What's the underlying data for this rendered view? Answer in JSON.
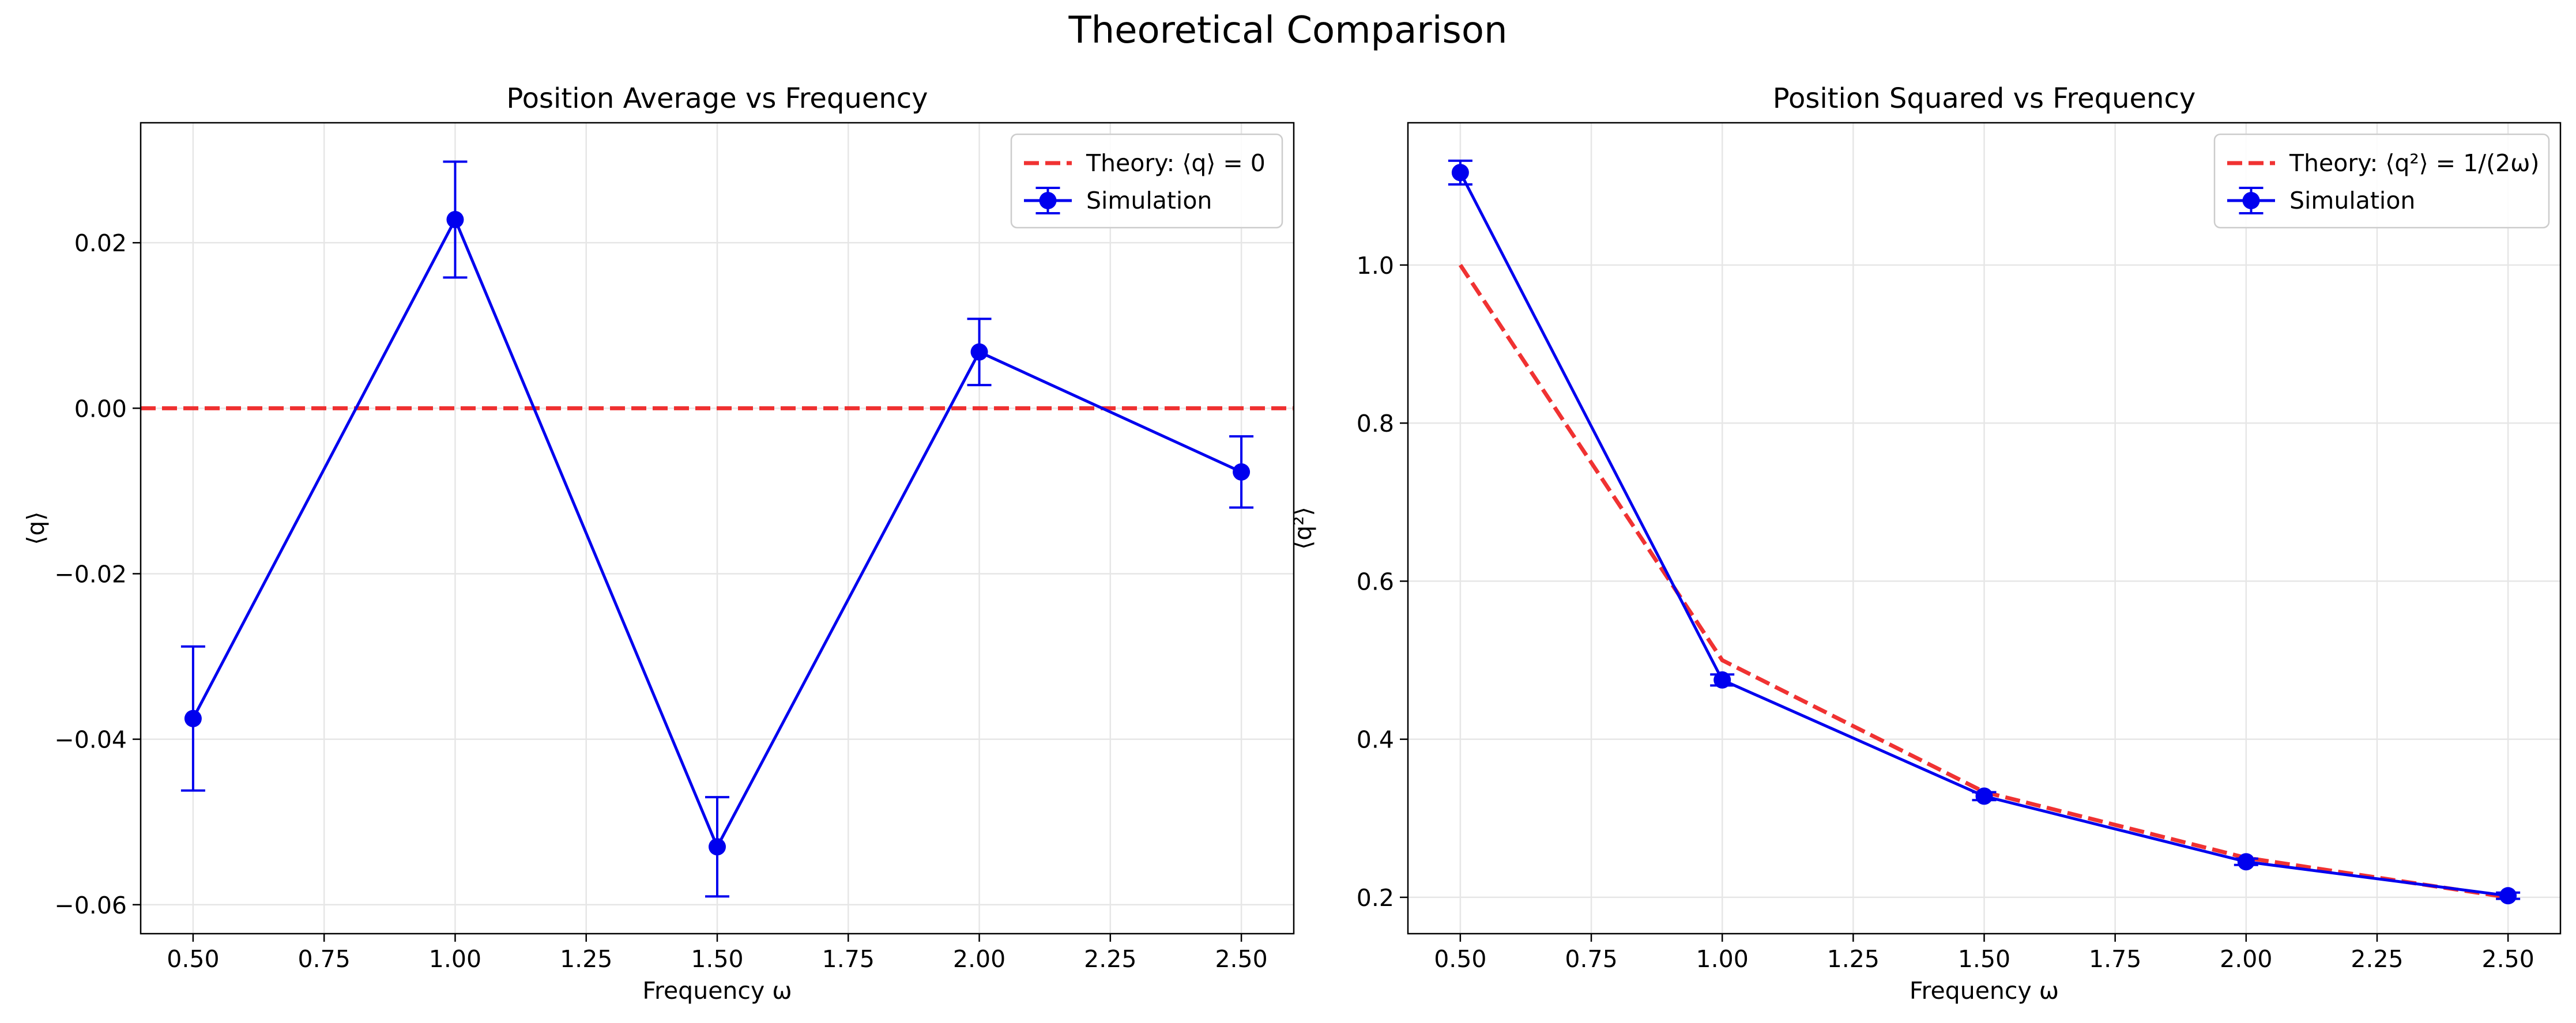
{
  "figure": {
    "suptitle": "Theoretical Comparison"
  },
  "chart_data": [
    {
      "type": "line",
      "title": "Position Average vs Frequency",
      "xlabel": "Frequency ω",
      "ylabel": "⟨q⟩",
      "xlim": [
        0.4,
        2.6
      ],
      "ylim": [
        -0.0635,
        0.0345
      ],
      "xticks": [
        0.5,
        0.75,
        1.0,
        1.25,
        1.5,
        1.75,
        2.0,
        2.25,
        2.5
      ],
      "xtick_labels": [
        "0.50",
        "0.75",
        "1.00",
        "1.25",
        "1.50",
        "1.75",
        "2.00",
        "2.25",
        "2.50"
      ],
      "yticks": [
        -0.06,
        -0.04,
        -0.02,
        0.0,
        0.02
      ],
      "ytick_labels": [
        "−0.06",
        "−0.04",
        "−0.02",
        "0.00",
        "0.02"
      ],
      "grid": true,
      "legend_position": "top-right",
      "series": [
        {
          "name": "Theory: ⟨q⟩ = 0",
          "kind": "theory",
          "color": "#ee1c1c",
          "dash": true,
          "x": [
            0.4,
            2.6
          ],
          "y": [
            0.0,
            0.0
          ]
        },
        {
          "name": "Simulation",
          "kind": "simulation",
          "color": "#0000ee",
          "x": [
            0.5,
            1.0,
            1.5,
            2.0,
            2.5
          ],
          "y": [
            -0.0375,
            0.0228,
            -0.053,
            0.0068,
            -0.0077
          ],
          "yerr": [
            0.0087,
            0.007,
            0.006,
            0.004,
            0.0043
          ]
        }
      ]
    },
    {
      "type": "line",
      "title": "Position Squared vs Frequency",
      "xlabel": "Frequency ω",
      "ylabel": "⟨q²⟩",
      "xlim": [
        0.4,
        2.6
      ],
      "ylim": [
        0.154,
        1.18
      ],
      "xticks": [
        0.5,
        0.75,
        1.0,
        1.25,
        1.5,
        1.75,
        2.0,
        2.25,
        2.5
      ],
      "xtick_labels": [
        "0.50",
        "0.75",
        "1.00",
        "1.25",
        "1.50",
        "1.75",
        "2.00",
        "2.25",
        "2.50"
      ],
      "yticks": [
        0.2,
        0.4,
        0.6,
        0.8,
        1.0
      ],
      "ytick_labels": [
        "0.2",
        "0.4",
        "0.6",
        "0.8",
        "1.0"
      ],
      "grid": true,
      "legend_position": "top-right",
      "series": [
        {
          "name": "Theory: ⟨q²⟩ = 1/(2ω)",
          "kind": "theory",
          "color": "#ee1c1c",
          "dash": true,
          "x": [
            0.5,
            1.0,
            1.5,
            2.0,
            2.5
          ],
          "y": [
            1.0,
            0.5,
            0.3333,
            0.25,
            0.2
          ]
        },
        {
          "name": "Simulation",
          "kind": "simulation",
          "color": "#0000ee",
          "x": [
            0.5,
            1.0,
            1.5,
            2.0,
            2.5
          ],
          "y": [
            1.117,
            0.475,
            0.328,
            0.245,
            0.202
          ],
          "yerr": [
            0.015,
            0.007,
            0.005,
            0.004,
            0.004
          ]
        }
      ]
    }
  ]
}
